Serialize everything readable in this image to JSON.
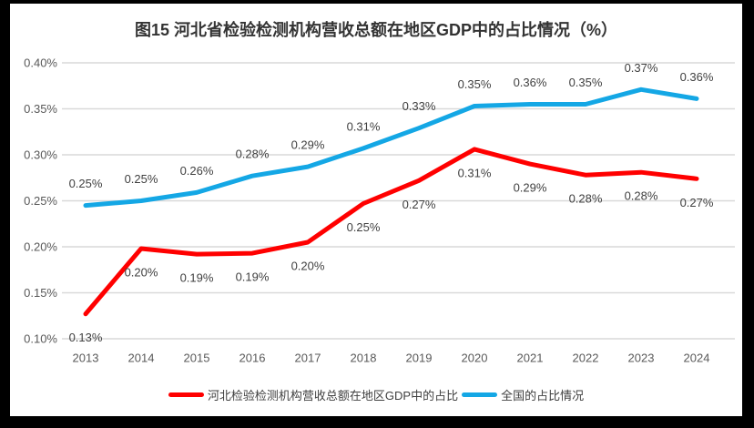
{
  "chart_data": {
    "type": "line",
    "title": "图15 河北省检验检测机构营收总额在地区GDP中的占比情况（%）",
    "x": [
      "2013",
      "2014",
      "2015",
      "2016",
      "2017",
      "2018",
      "2019",
      "2020",
      "2021",
      "2022",
      "2023",
      "2024"
    ],
    "ylim": [
      0.1,
      0.4
    ],
    "ytick_step": 0.05,
    "yticks": [
      "0.40%",
      "0.35%",
      "0.30%",
      "0.25%",
      "0.20%",
      "0.15%",
      "0.10%"
    ],
    "grid": "horizontal-only",
    "legend_position": "bottom",
    "unit": "%",
    "series": [
      {
        "name": "河北检验检测机构营收总额在地区GDP中的占比",
        "color": "#ff0000",
        "values": [
          0.13,
          0.2,
          0.19,
          0.19,
          0.2,
          0.25,
          0.27,
          0.31,
          0.29,
          0.28,
          0.28,
          0.27
        ],
        "labels": [
          "0.13%",
          "0.20%",
          "0.19%",
          "0.19%",
          "0.20%",
          "0.25%",
          "0.27%",
          "0.31%",
          "0.29%",
          "0.28%",
          "0.28%",
          "0.27%"
        ],
        "values_plot": [
          0.127,
          0.198,
          0.192,
          0.193,
          0.205,
          0.247,
          0.272,
          0.306,
          0.29,
          0.278,
          0.281,
          0.274
        ],
        "label_position": "below"
      },
      {
        "name": "全国的占比情况",
        "color": "#14a7e5",
        "values": [
          0.25,
          0.25,
          0.26,
          0.28,
          0.29,
          0.31,
          0.33,
          0.35,
          0.36,
          0.35,
          0.37,
          0.36
        ],
        "labels": [
          "0.25%",
          "0.25%",
          "0.26%",
          "0.28%",
          "0.29%",
          "0.31%",
          "0.33%",
          "0.35%",
          "0.36%",
          "0.35%",
          "0.37%",
          "0.36%"
        ],
        "values_plot": [
          0.245,
          0.25,
          0.259,
          0.277,
          0.287,
          0.307,
          0.329,
          0.353,
          0.355,
          0.355,
          0.371,
          0.361
        ],
        "label_position": "above"
      }
    ]
  },
  "colors": {
    "frame": "#000000",
    "panel_background": "#ffffff",
    "gridline": "#d9d9d9",
    "axis_text": "#595959",
    "data_label_text": "#3f3f3f",
    "title_text": "#333333"
  }
}
